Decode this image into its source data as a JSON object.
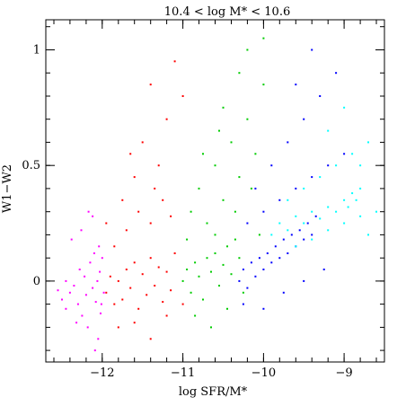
{
  "chart_data": {
    "type": "scatter",
    "title": "10.4 < log M* < 10.6",
    "xlabel": "log SFR/M*",
    "ylabel": "W1−W2",
    "xlim": [
      -12.7,
      -8.5
    ],
    "ylim": [
      -0.35,
      1.13
    ],
    "xticks": [
      -12,
      -11,
      -10,
      -9
    ],
    "xtick_labels": [
      "−12",
      "−11",
      "−10",
      "−9"
    ],
    "yticks": [
      0,
      0.5,
      1
    ],
    "ytick_labels": [
      "0",
      "0.5",
      "1"
    ],
    "grid": false,
    "legend": "none",
    "series": [
      {
        "color": "#ff00ff",
        "points": [
          [
            -12.5,
            -0.08
          ],
          [
            -12.45,
            -0.12
          ],
          [
            -12.4,
            -0.05
          ],
          [
            -12.35,
            -0.02
          ],
          [
            -12.3,
            -0.1
          ],
          [
            -12.28,
            0.05
          ],
          [
            -12.25,
            -0.15
          ],
          [
            -12.22,
            0.02
          ],
          [
            -12.2,
            -0.06
          ],
          [
            -12.18,
            -0.2
          ],
          [
            -12.15,
            0.08
          ],
          [
            -12.12,
            -0.03
          ],
          [
            -12.1,
            0.12
          ],
          [
            -12.08,
            -0.09
          ],
          [
            -12.06,
            0.0
          ],
          [
            -12.05,
            -0.25
          ],
          [
            -12.03,
            0.04
          ],
          [
            -12.02,
            -0.14
          ],
          [
            -12.0,
            0.1
          ],
          [
            -11.98,
            -0.05
          ],
          [
            -12.45,
            0.0
          ],
          [
            -12.38,
            0.18
          ],
          [
            -12.32,
            -0.18
          ],
          [
            -12.26,
            0.22
          ],
          [
            -12.17,
            0.3
          ],
          [
            -12.12,
            0.28
          ],
          [
            -12.09,
            -0.3
          ],
          [
            -12.04,
            0.15
          ],
          [
            -12.01,
            -0.1
          ],
          [
            -12.55,
            -0.04
          ]
        ]
      },
      {
        "color": "#ff0000",
        "points": [
          [
            -11.95,
            -0.05
          ],
          [
            -11.9,
            0.02
          ],
          [
            -11.85,
            -0.1
          ],
          [
            -11.8,
            0.0
          ],
          [
            -11.75,
            -0.08
          ],
          [
            -11.7,
            0.05
          ],
          [
            -11.65,
            -0.03
          ],
          [
            -11.6,
            0.08
          ],
          [
            -11.55,
            -0.12
          ],
          [
            -11.5,
            0.03
          ],
          [
            -11.45,
            -0.06
          ],
          [
            -11.4,
            0.1
          ],
          [
            -11.35,
            -0.02
          ],
          [
            -11.3,
            0.06
          ],
          [
            -11.25,
            -0.09
          ],
          [
            -11.2,
            0.04
          ],
          [
            -11.15,
            -0.04
          ],
          [
            -11.1,
            0.12
          ],
          [
            -11.85,
            0.15
          ],
          [
            -11.7,
            0.22
          ],
          [
            -11.55,
            0.3
          ],
          [
            -11.4,
            0.25
          ],
          [
            -11.25,
            0.35
          ],
          [
            -11.6,
            0.45
          ],
          [
            -11.3,
            0.5
          ],
          [
            -11.5,
            0.6
          ],
          [
            -11.2,
            0.7
          ],
          [
            -11.0,
            0.8
          ],
          [
            -11.4,
            0.85
          ],
          [
            -11.1,
            0.95
          ],
          [
            -11.8,
            -0.2
          ],
          [
            -11.6,
            -0.18
          ],
          [
            -11.4,
            -0.25
          ],
          [
            -11.2,
            -0.15
          ],
          [
            -11.0,
            -0.1
          ],
          [
            -11.75,
            0.35
          ],
          [
            -11.95,
            0.25
          ],
          [
            -11.65,
            0.55
          ],
          [
            -11.35,
            0.4
          ],
          [
            -11.15,
            0.28
          ]
        ]
      },
      {
        "color": "#00cc00",
        "points": [
          [
            -11.0,
            0.0
          ],
          [
            -10.95,
            0.05
          ],
          [
            -10.9,
            -0.05
          ],
          [
            -10.85,
            0.08
          ],
          [
            -10.8,
            0.02
          ],
          [
            -10.75,
            -0.08
          ],
          [
            -10.7,
            0.1
          ],
          [
            -10.65,
            0.04
          ],
          [
            -10.6,
            0.12
          ],
          [
            -10.55,
            -0.02
          ],
          [
            -10.5,
            0.07
          ],
          [
            -10.45,
            0.15
          ],
          [
            -10.4,
            0.03
          ],
          [
            -10.35,
            0.18
          ],
          [
            -10.3,
            0.1
          ],
          [
            -10.9,
            0.3
          ],
          [
            -10.8,
            0.4
          ],
          [
            -10.7,
            0.25
          ],
          [
            -10.6,
            0.5
          ],
          [
            -10.5,
            0.35
          ],
          [
            -10.4,
            0.6
          ],
          [
            -10.3,
            0.45
          ],
          [
            -10.2,
            0.7
          ],
          [
            -10.1,
            0.55
          ],
          [
            -10.0,
            0.85
          ],
          [
            -10.5,
            0.75
          ],
          [
            -10.3,
            0.9
          ],
          [
            -10.2,
            1.0
          ],
          [
            -10.0,
            1.05
          ],
          [
            -10.6,
            0.2
          ],
          [
            -10.85,
            -0.15
          ],
          [
            -10.65,
            -0.2
          ],
          [
            -10.45,
            -0.12
          ],
          [
            -10.25,
            -0.05
          ],
          [
            -10.95,
            0.18
          ],
          [
            -10.75,
            0.55
          ],
          [
            -10.55,
            0.65
          ],
          [
            -10.35,
            0.3
          ],
          [
            -10.15,
            0.4
          ],
          [
            -10.05,
            0.2
          ]
        ]
      },
      {
        "color": "#0000ff",
        "points": [
          [
            -10.3,
            0.0
          ],
          [
            -10.25,
            0.05
          ],
          [
            -10.2,
            -0.03
          ],
          [
            -10.15,
            0.08
          ],
          [
            -10.1,
            0.02
          ],
          [
            -10.05,
            0.1
          ],
          [
            -10.0,
            0.05
          ],
          [
            -9.95,
            0.12
          ],
          [
            -9.9,
            0.08
          ],
          [
            -9.85,
            0.15
          ],
          [
            -9.8,
            0.1
          ],
          [
            -9.75,
            0.18
          ],
          [
            -9.7,
            0.12
          ],
          [
            -9.65,
            0.2
          ],
          [
            -9.6,
            0.15
          ],
          [
            -9.55,
            0.22
          ],
          [
            -9.5,
            0.18
          ],
          [
            -9.45,
            0.25
          ],
          [
            -9.4,
            0.2
          ],
          [
            -9.35,
            0.28
          ],
          [
            -10.2,
            0.25
          ],
          [
            -10.0,
            0.3
          ],
          [
            -9.8,
            0.35
          ],
          [
            -9.6,
            0.4
          ],
          [
            -9.4,
            0.45
          ],
          [
            -9.2,
            0.5
          ],
          [
            -9.0,
            0.55
          ],
          [
            -9.7,
            0.6
          ],
          [
            -9.5,
            0.7
          ],
          [
            -9.3,
            0.8
          ],
          [
            -9.1,
            0.9
          ],
          [
            -9.4,
            1.0
          ],
          [
            -9.6,
            0.85
          ],
          [
            -9.9,
            0.5
          ],
          [
            -10.1,
            0.4
          ],
          [
            -10.25,
            -0.1
          ],
          [
            -10.0,
            -0.12
          ],
          [
            -9.75,
            -0.05
          ],
          [
            -9.5,
            0.0
          ],
          [
            -9.25,
            0.05
          ]
        ]
      },
      {
        "color": "#00ffff",
        "points": [
          [
            -9.9,
            0.2
          ],
          [
            -9.8,
            0.25
          ],
          [
            -9.7,
            0.22
          ],
          [
            -9.6,
            0.28
          ],
          [
            -9.5,
            0.25
          ],
          [
            -9.4,
            0.3
          ],
          [
            -9.3,
            0.27
          ],
          [
            -9.2,
            0.32
          ],
          [
            -9.1,
            0.3
          ],
          [
            -9.0,
            0.35
          ],
          [
            -8.95,
            0.32
          ],
          [
            -8.9,
            0.38
          ],
          [
            -8.85,
            0.35
          ],
          [
            -8.8,
            0.4
          ],
          [
            -9.6,
            0.15
          ],
          [
            -9.4,
            0.18
          ],
          [
            -9.2,
            0.22
          ],
          [
            -9.0,
            0.25
          ],
          [
            -8.8,
            0.28
          ],
          [
            -9.5,
            0.4
          ],
          [
            -9.3,
            0.45
          ],
          [
            -9.1,
            0.5
          ],
          [
            -8.9,
            0.55
          ],
          [
            -8.7,
            0.6
          ],
          [
            -9.2,
            0.65
          ],
          [
            -9.0,
            0.75
          ],
          [
            -8.8,
            0.5
          ],
          [
            -8.6,
            0.3
          ],
          [
            -8.7,
            0.2
          ],
          [
            -9.7,
            0.35
          ]
        ]
      }
    ]
  }
}
